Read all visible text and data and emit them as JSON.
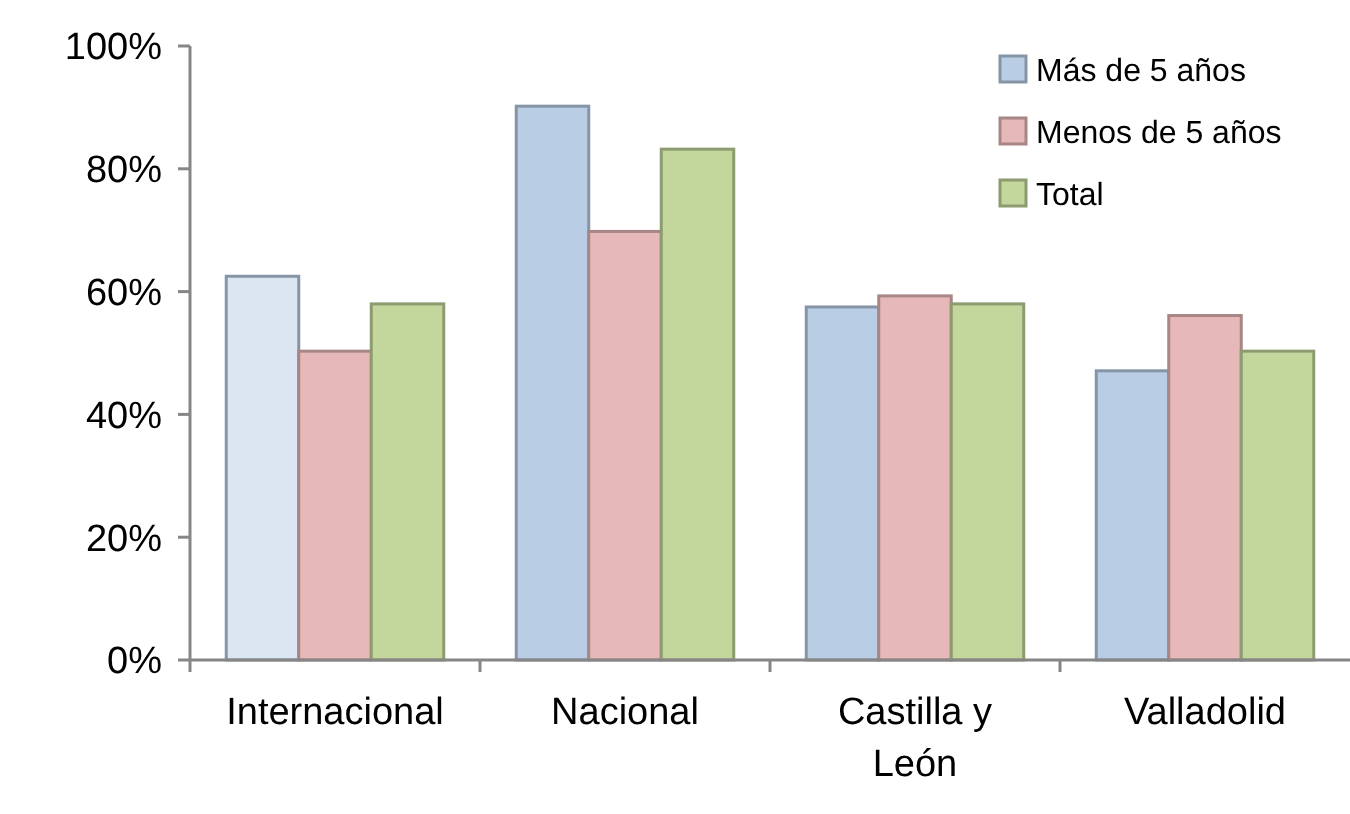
{
  "chart_data": {
    "type": "bar",
    "categories": [
      "Internacional",
      "Nacional",
      "Castilla y León",
      "Valladolid"
    ],
    "series": [
      {
        "name": "Más de 5 años",
        "color": "#b9cde5",
        "colors": [
          "#dce6f2",
          "#b9cde5",
          "#b9cde5",
          "#b9cde5"
        ],
        "values": [
          62.5,
          90.2,
          57.5,
          47.1
        ]
      },
      {
        "name": "Menos de 5 años",
        "color": "#e6b9b8",
        "values": [
          50.3,
          69.8,
          59.3,
          56.1
        ]
      },
      {
        "name": "Total",
        "color": "#c3d69b",
        "values": [
          58.0,
          83.2,
          58.0,
          50.3
        ]
      }
    ],
    "ylim": [
      0,
      100
    ],
    "yticks": [
      {
        "value": 0,
        "label": "0%"
      },
      {
        "value": 20,
        "label": "20%"
      },
      {
        "value": 40,
        "label": "40%"
      },
      {
        "value": 60,
        "label": "60%"
      },
      {
        "value": 80,
        "label": "80%"
      },
      {
        "value": 100,
        "label": "100%"
      }
    ],
    "grid": false,
    "legend": "top right"
  }
}
